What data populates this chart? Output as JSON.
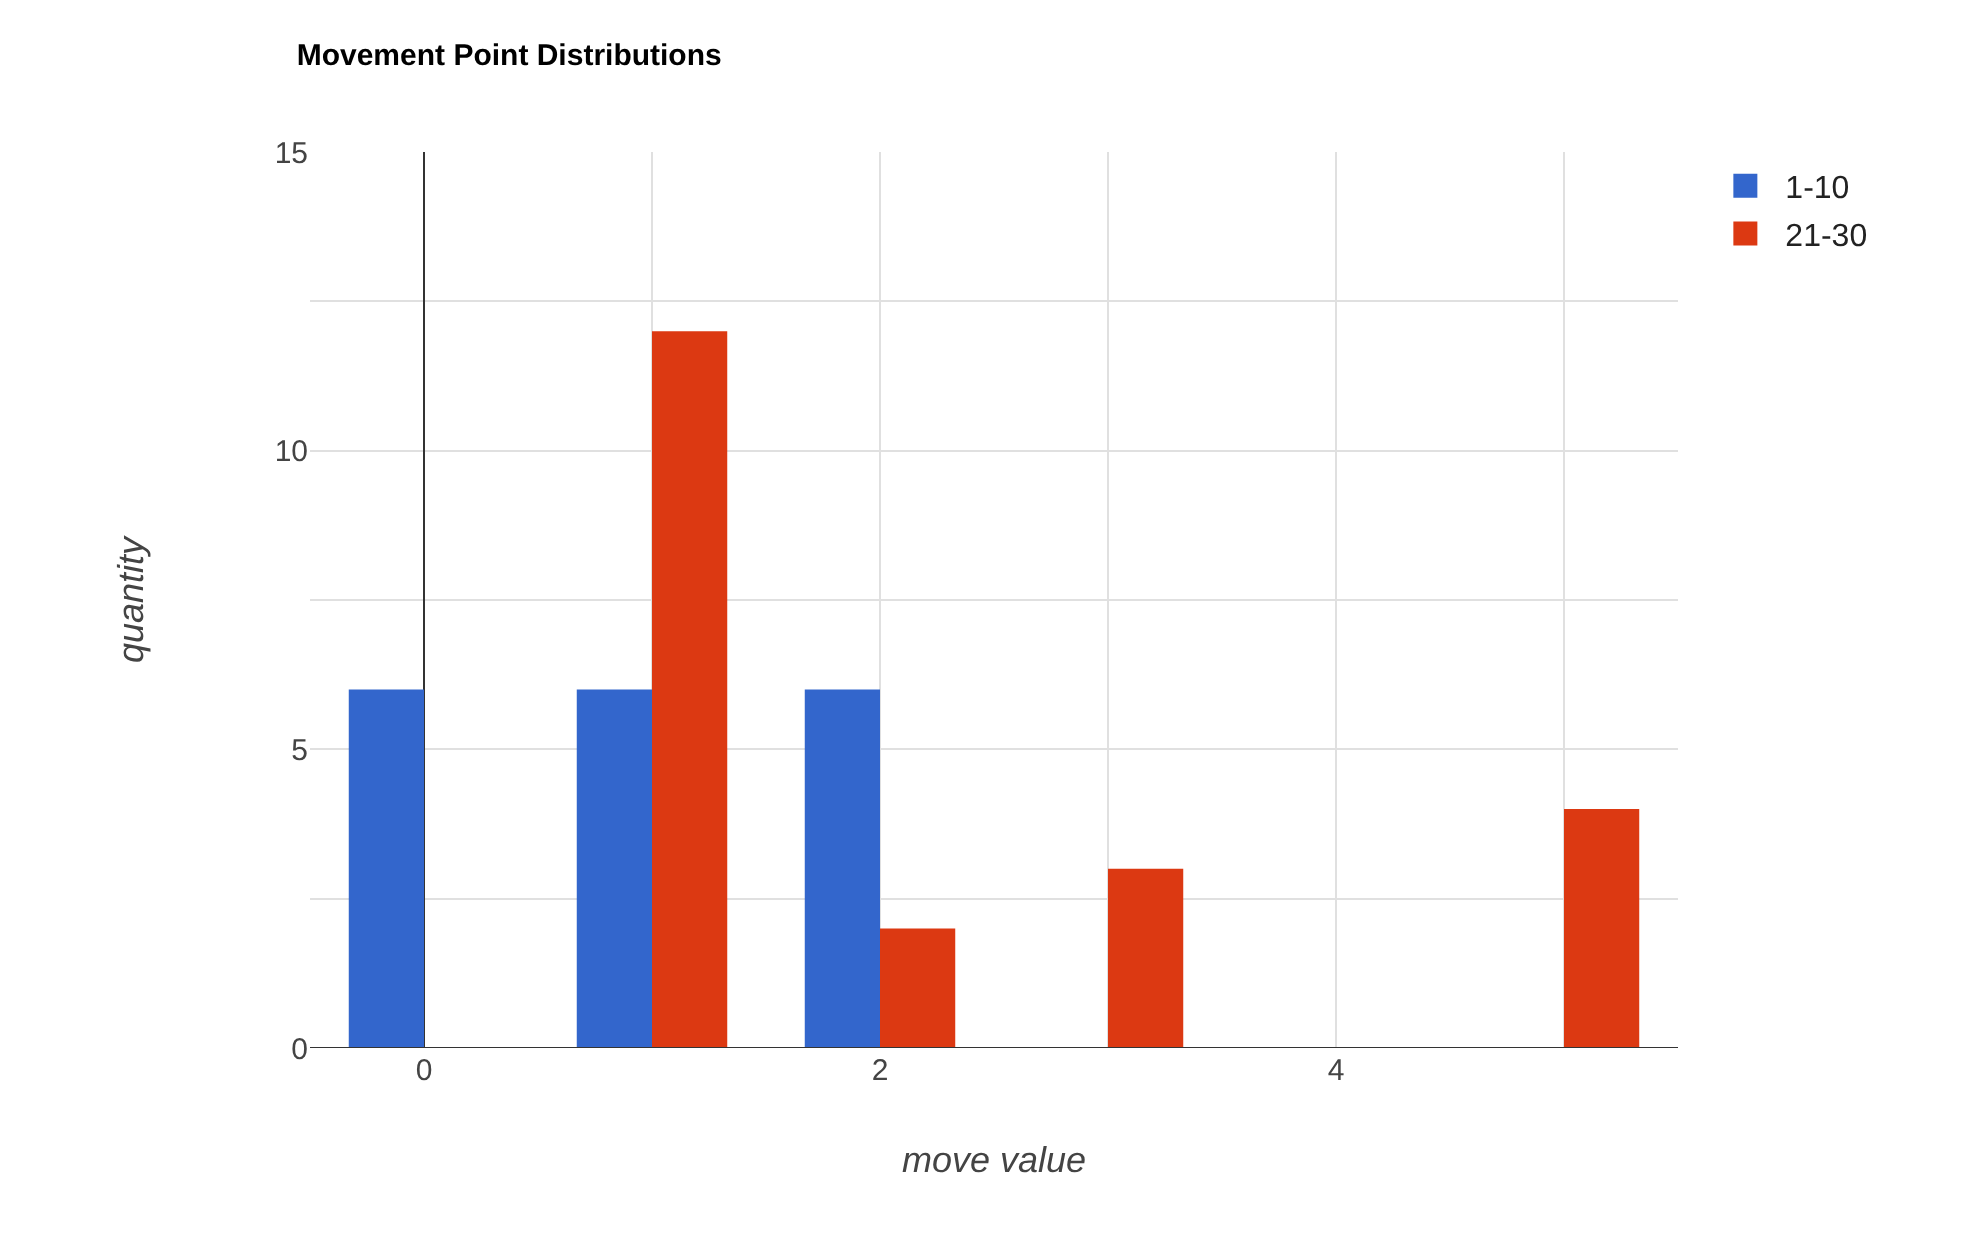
{
  "chart_data": {
    "type": "bar",
    "title": "Movement Point Distributions",
    "xlabel": "move value",
    "ylabel": "quantity",
    "x": [
      0,
      1,
      2,
      3,
      4,
      5
    ],
    "series": [
      {
        "name": "1-10",
        "color": "#3366cc",
        "values": [
          6,
          6,
          6,
          0,
          0,
          0
        ]
      },
      {
        "name": "21-30",
        "color": "#dc3912",
        "values": [
          0,
          12,
          2,
          3,
          0,
          4
        ]
      }
    ],
    "xlim": [
      -0.5,
      5.5
    ],
    "xticks": [
      0,
      {
        "value": 1,
        "label": null
      },
      2,
      {
        "value": 3,
        "label": null
      },
      4,
      {
        "value": 5,
        "label": null
      }
    ],
    "ylim": [
      0,
      15
    ],
    "yticks": [
      0,
      {
        "value": 2.5,
        "label": null
      },
      5,
      {
        "value": 7.5,
        "label": null
      },
      10,
      {
        "value": 12.5,
        "label": null
      },
      15
    ],
    "grid": true,
    "legend": "top right"
  }
}
